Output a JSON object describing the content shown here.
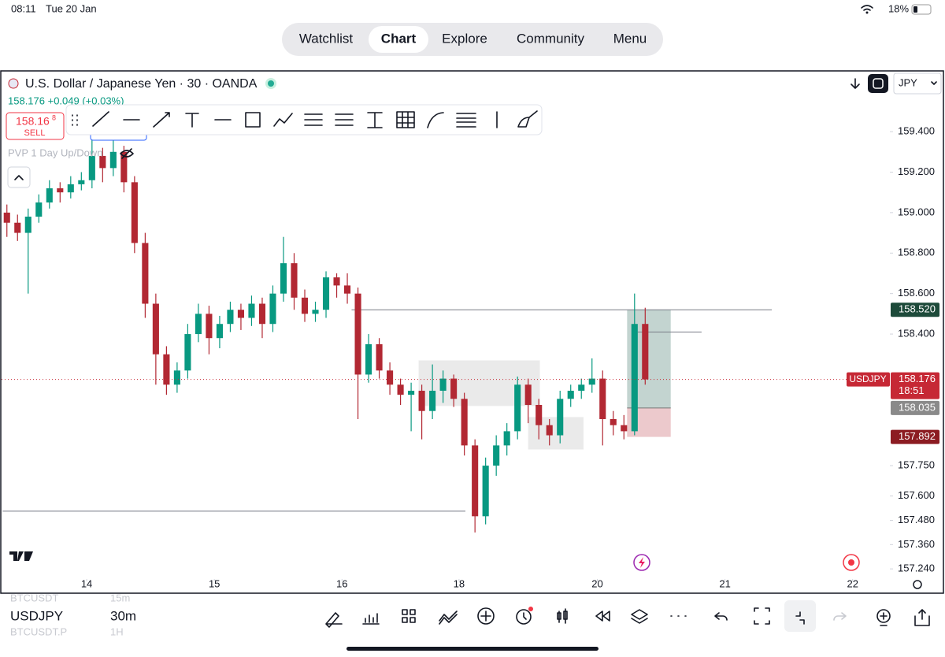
{
  "status_bar": {
    "time": "08:11",
    "date": "Tue 20 Jan",
    "battery": "18%"
  },
  "nav": {
    "tabs": [
      "Watchlist",
      "Chart",
      "Explore",
      "Community",
      "Menu"
    ],
    "active": 1
  },
  "header": {
    "symbol_title": "U.S. Dollar / Japanese Yen · 30 · OANDA",
    "quote": "158.176 +0.049 (+0.03%)",
    "sell_price": "158.16",
    "sell_price_small": "8",
    "sell_label": "SELL",
    "indicator": "PVP 1 Day Up/Down",
    "currency": "JPY"
  },
  "chart_data": {
    "type": "candlestick",
    "up_color": "#089981",
    "down_color": "#b22833",
    "xlim": [
      -0.5,
      83
    ],
    "ylim": [
      157.19,
      159.7
    ],
    "xticks": [
      {
        "value": 7.5,
        "label": "14"
      },
      {
        "value": 19.5,
        "label": "15"
      },
      {
        "value": 31.5,
        "label": "16"
      },
      {
        "value": 42.5,
        "label": "18"
      },
      {
        "value": 55.5,
        "label": "20"
      },
      {
        "value": 67.5,
        "label": "21"
      },
      {
        "value": 79.5,
        "label": "22"
      }
    ],
    "yticks": [
      {
        "value": 159.4,
        "label": "159.400"
      },
      {
        "value": 159.2,
        "label": "159.200"
      },
      {
        "value": 159.0,
        "label": "159.000"
      },
      {
        "value": 158.8,
        "label": "158.800"
      },
      {
        "value": 158.6,
        "label": "158.600"
      },
      {
        "value": 158.4,
        "label": "158.400"
      },
      {
        "value": 157.75,
        "label": "157.750"
      },
      {
        "value": 157.6,
        "label": "157.600"
      },
      {
        "value": 157.48,
        "label": "157.480"
      },
      {
        "value": 157.36,
        "label": "157.360"
      },
      {
        "value": 157.24,
        "label": "157.240"
      }
    ],
    "candles": [
      [
        159.0,
        159.04,
        158.88,
        158.95
      ],
      [
        158.95,
        158.99,
        158.86,
        158.9
      ],
      [
        158.9,
        159.02,
        158.6,
        158.98
      ],
      [
        158.98,
        159.09,
        158.95,
        159.05
      ],
      [
        159.05,
        159.16,
        159.02,
        159.12
      ],
      [
        159.12,
        159.15,
        159.05,
        159.1
      ],
      [
        159.1,
        159.18,
        159.07,
        159.14
      ],
      [
        159.14,
        159.2,
        159.11,
        159.16
      ],
      [
        159.16,
        159.36,
        159.12,
        159.28
      ],
      [
        159.28,
        159.32,
        159.15,
        159.22
      ],
      [
        159.22,
        159.36,
        159.18,
        159.3
      ],
      [
        159.3,
        159.33,
        159.1,
        159.15
      ],
      [
        159.15,
        159.18,
        158.8,
        158.85
      ],
      [
        158.85,
        158.9,
        158.48,
        158.55
      ],
      [
        158.55,
        158.6,
        158.15,
        158.3
      ],
      [
        158.3,
        158.34,
        158.1,
        158.15
      ],
      [
        158.15,
        158.26,
        158.11,
        158.22
      ],
      [
        158.22,
        158.45,
        158.18,
        158.4
      ],
      [
        158.4,
        158.55,
        158.36,
        158.5
      ],
      [
        158.5,
        158.54,
        158.3,
        158.38
      ],
      [
        158.38,
        158.49,
        158.33,
        158.45
      ],
      [
        158.45,
        158.56,
        158.41,
        158.52
      ],
      [
        158.52,
        158.55,
        158.42,
        158.48
      ],
      [
        158.48,
        158.59,
        158.44,
        158.55
      ],
      [
        158.55,
        158.58,
        158.38,
        158.45
      ],
      [
        158.45,
        158.64,
        158.41,
        158.6
      ],
      [
        158.6,
        158.88,
        158.56,
        158.75
      ],
      [
        158.75,
        158.8,
        158.52,
        158.58
      ],
      [
        158.58,
        158.62,
        158.46,
        158.5
      ],
      [
        158.5,
        158.56,
        158.46,
        158.52
      ],
      [
        158.52,
        158.71,
        158.48,
        158.68
      ],
      [
        158.68,
        158.7,
        158.58,
        158.64
      ],
      [
        158.64,
        158.7,
        158.55,
        158.6
      ],
      [
        158.6,
        158.63,
        157.98,
        158.2
      ],
      [
        158.2,
        158.4,
        158.16,
        158.35
      ],
      [
        158.35,
        158.38,
        158.18,
        158.22
      ],
      [
        158.22,
        158.26,
        158.1,
        158.15
      ],
      [
        158.15,
        158.18,
        158.05,
        158.1
      ],
      [
        158.1,
        158.16,
        157.92,
        158.12
      ],
      [
        158.12,
        158.15,
        157.88,
        158.02
      ],
      [
        158.02,
        158.25,
        157.98,
        158.12
      ],
      [
        158.12,
        158.22,
        158.06,
        158.18
      ],
      [
        158.18,
        158.2,
        158.04,
        158.08
      ],
      [
        158.08,
        158.11,
        157.8,
        157.85
      ],
      [
        157.85,
        157.88,
        157.42,
        157.5
      ],
      [
        157.5,
        157.79,
        157.46,
        157.75
      ],
      [
        157.75,
        157.9,
        157.7,
        157.85
      ],
      [
        157.85,
        157.96,
        157.8,
        157.92
      ],
      [
        157.92,
        158.19,
        157.88,
        158.15
      ],
      [
        158.15,
        158.18,
        157.96,
        158.05
      ],
      [
        158.05,
        158.08,
        157.88,
        157.95
      ],
      [
        157.95,
        157.98,
        157.85,
        157.9
      ],
      [
        157.9,
        158.12,
        157.86,
        158.08
      ],
      [
        158.08,
        158.15,
        158.04,
        158.12
      ],
      [
        158.12,
        158.18,
        158.08,
        158.15
      ],
      [
        158.15,
        158.28,
        158.11,
        158.18
      ],
      [
        158.18,
        158.22,
        157.85,
        157.98
      ],
      [
        157.98,
        158.02,
        157.9,
        157.95
      ],
      [
        157.95,
        158.0,
        157.88,
        157.92
      ],
      [
        157.92,
        158.6,
        157.9,
        158.45
      ],
      [
        158.45,
        158.53,
        158.15,
        158.176
      ]
    ],
    "levels": [
      {
        "value": 158.52,
        "from": 32.4,
        "to": 71.9
      },
      {
        "value": 158.41,
        "from": 59.3,
        "to": 65.3
      },
      {
        "value": 157.525,
        "from": -0.4,
        "to": 43.1
      }
    ],
    "zones": [
      {
        "from": 38.7,
        "to": 50.1,
        "top": 158.27,
        "bottom": 158.045
      },
      {
        "from": 49.0,
        "to": 54.2,
        "top": 157.99,
        "bottom": 157.83
      }
    ],
    "position": {
      "from": 58.3,
      "to": 62.4,
      "target": 158.52,
      "entry": 158.035,
      "stop": 157.892
    },
    "price_labels": [
      {
        "value": 158.52,
        "label": "158.520",
        "color": "#1d4a3a"
      },
      {
        "value": 158.035,
        "label": "158.035",
        "color": "#8a8a8a"
      },
      {
        "value": 157.892,
        "label": "157.892",
        "color": "#8c1c22"
      }
    ],
    "current": {
      "symbol": "USDJPY",
      "value": 158.176,
      "label": "158.176",
      "countdown": "18:51",
      "color": "#c62835"
    }
  },
  "bottom_bar": {
    "symbols": [
      {
        "symbol": "BTCUSDT",
        "interval": "15m"
      },
      {
        "symbol": "USDJPY",
        "interval": "30m"
      },
      {
        "symbol": "BTCUSDT.P",
        "interval": "1H"
      }
    ],
    "active": 1
  }
}
